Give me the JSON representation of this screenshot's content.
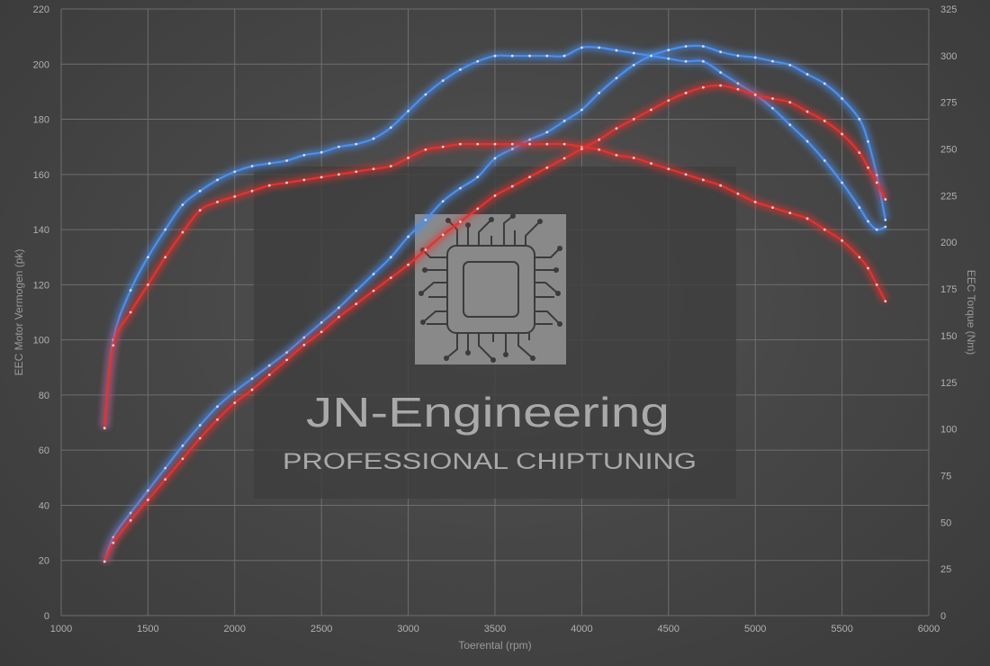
{
  "chart_data": {
    "type": "line",
    "xlabel": "Toerental (rpm)",
    "ylabel": "EEC Motor Vermogen (pk)",
    "y2label": "EEC Torque (Nm)",
    "xlim": [
      1000,
      6000
    ],
    "ylim": [
      0,
      220
    ],
    "y2lim": [
      0,
      325
    ],
    "grid": true,
    "x_ticks": [
      1000,
      1500,
      2000,
      2500,
      3000,
      3500,
      4000,
      4500,
      5000,
      5500,
      6000
    ],
    "y_ticks": [
      0,
      20,
      40,
      60,
      80,
      100,
      120,
      140,
      160,
      180,
      200,
      220
    ],
    "y2_ticks": [
      0,
      25,
      50,
      75,
      100,
      125,
      150,
      175,
      200,
      225,
      250,
      275,
      300,
      325
    ],
    "series_colors": {
      "tuned": "#4b8ff0",
      "stock": "#e5322e"
    },
    "series": [
      {
        "axis": "left",
        "group": "tuned",
        "x": [
          1250,
          1300,
          1400,
          1500,
          1600,
          1700,
          1800,
          1900,
          2000,
          2100,
          2200,
          2300,
          2400,
          2500,
          2600,
          2700,
          2800,
          2900,
          3000,
          3100,
          3200,
          3300,
          3400,
          3500,
          3600,
          3700,
          3800,
          3900,
          4000,
          4100,
          4200,
          4300,
          4400,
          4500,
          4600,
          4700,
          4800,
          4900,
          5000,
          5100,
          5200,
          5300,
          5400,
          5500,
          5600,
          5650,
          5700,
          5750
        ],
        "y": [
          68,
          100,
          118,
          130,
          140,
          149,
          154,
          158,
          161,
          163,
          164,
          165,
          167,
          168,
          170,
          171,
          173,
          177,
          183,
          189,
          194,
          198,
          201,
          203,
          203,
          203,
          203,
          203,
          206,
          206,
          205,
          204,
          203,
          202,
          201,
          201,
          197,
          193,
          189,
          184,
          178,
          172,
          165,
          157,
          148,
          143,
          140,
          141
        ]
      },
      {
        "axis": "right",
        "group": "tuned",
        "x": [
          1250,
          1300,
          1400,
          1500,
          1600,
          1700,
          1800,
          1900,
          2000,
          2100,
          2200,
          2300,
          2400,
          2500,
          2600,
          2700,
          2800,
          2900,
          3000,
          3100,
          3200,
          3300,
          3400,
          3500,
          3600,
          3700,
          3800,
          3900,
          4000,
          4100,
          4200,
          4300,
          4400,
          4500,
          4600,
          4700,
          4800,
          4900,
          5000,
          5100,
          5200,
          5300,
          5400,
          5500,
          5600,
          5650,
          5700,
          5750
        ],
        "y": [
          29,
          42,
          55,
          67,
          79,
          91,
          102,
          112,
          120,
          127,
          134,
          141,
          149,
          157,
          165,
          174,
          183,
          192,
          203,
          212,
          222,
          229,
          235,
          245,
          250,
          255,
          259,
          265,
          271,
          280,
          288,
          295,
          300,
          303,
          305,
          305,
          302,
          300,
          299,
          297,
          295,
          290,
          285,
          277,
          266,
          254,
          236,
          212
        ]
      },
      {
        "axis": "left",
        "group": "stock",
        "x": [
          1250,
          1300,
          1400,
          1500,
          1600,
          1700,
          1800,
          1900,
          2000,
          2100,
          2200,
          2300,
          2400,
          2500,
          2600,
          2700,
          2800,
          2900,
          3000,
          3100,
          3200,
          3300,
          3400,
          3500,
          3600,
          3700,
          3800,
          3900,
          4000,
          4100,
          4200,
          4300,
          4400,
          4500,
          4600,
          4700,
          4800,
          4900,
          5000,
          5100,
          5200,
          5300,
          5400,
          5500,
          5600,
          5650,
          5700,
          5750
        ],
        "y": [
          68,
          98,
          110,
          120,
          130,
          139,
          147,
          150,
          152,
          154,
          156,
          157,
          158,
          159,
          160,
          161,
          162,
          163,
          166,
          169,
          170,
          171,
          171,
          171,
          171,
          171,
          171,
          171,
          170,
          169,
          167,
          166,
          164,
          162,
          160,
          158,
          156,
          153,
          150,
          148,
          146,
          144,
          140,
          136,
          130,
          126,
          120,
          114
        ]
      },
      {
        "axis": "right",
        "group": "stock",
        "x": [
          1250,
          1300,
          1400,
          1500,
          1600,
          1700,
          1800,
          1900,
          2000,
          2100,
          2200,
          2300,
          2400,
          2500,
          2600,
          2700,
          2800,
          2900,
          3000,
          3100,
          3200,
          3300,
          3400,
          3500,
          3600,
          3700,
          3800,
          3900,
          4000,
          4100,
          4200,
          4300,
          4400,
          4500,
          4600,
          4700,
          4800,
          4900,
          5000,
          5100,
          5200,
          5300,
          5400,
          5500,
          5600,
          5650,
          5700,
          5750
        ],
        "y": [
          29,
          39,
          51,
          62,
          73,
          84,
          95,
          105,
          114,
          121,
          129,
          137,
          145,
          152,
          160,
          167,
          174,
          181,
          188,
          196,
          204,
          211,
          218,
          225,
          230,
          235,
          240,
          245,
          250,
          255,
          261,
          266,
          271,
          276,
          280,
          283,
          284,
          282,
          279,
          277,
          275,
          270,
          265,
          258,
          248,
          240,
          232,
          223
        ]
      }
    ]
  },
  "logo": {
    "brand": "JN-Engineering",
    "tagline": "PROFESSIONAL CHIPTUNING"
  }
}
